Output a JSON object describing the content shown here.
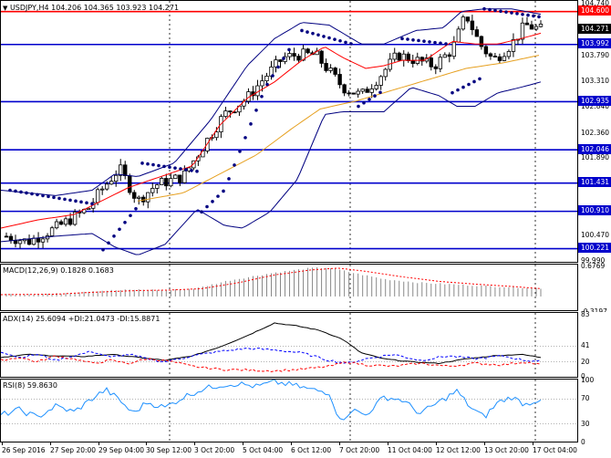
{
  "main": {
    "symbol_label": "USDJPY,H4  104.206 104.365 103.923 104.271",
    "current_price": "104.271",
    "price_ticks": [
      "104.740",
      "104.271",
      "103.790",
      "103.310",
      "102.840",
      "102.360",
      "101.890",
      "101.431",
      "100.910",
      "100.470",
      "99.990"
    ],
    "hlines": [
      {
        "label": "104.600",
        "price": 104.6,
        "color": "#ff0000"
      },
      {
        "label": "103.992",
        "price": 103.992,
        "color": "#0000cc"
      },
      {
        "label": "102.935",
        "price": 102.935,
        "color": "#0000cc"
      },
      {
        "label": "102.046",
        "price": 102.046,
        "color": "#0000cc"
      },
      {
        "label": "101.431",
        "price": 101.431,
        "color": "#0000cc"
      },
      {
        "label": "100.910",
        "price": 100.91,
        "color": "#0000cc"
      },
      {
        "label": "100.221",
        "price": 100.221,
        "color": "#0000cc"
      }
    ]
  },
  "macd": {
    "label": "MACD(12,26,9) 0.1828 0.1683",
    "ticks": [
      "0.6769",
      "0.00",
      "-0.3197"
    ]
  },
  "adx": {
    "label": "ADX(14) 25.6094 +DI:21.0473 -DI:15.8871",
    "ticks": [
      "83",
      "41",
      "20",
      "0"
    ]
  },
  "rsi": {
    "label": "RSI(8) 59.8630",
    "ticks": [
      "100",
      "70",
      "30",
      "0"
    ]
  },
  "xaxis": [
    "26 Sep 2016",
    "27 Sep 20:00",
    "29 Sep 04:00",
    "30 Sep 12:00",
    "3 Oct 20:00",
    "5 Oct 04:00",
    "6 Oct 12:00",
    "7 Oct 20:00",
    "11 Oct 04:00",
    "12 Oct 12:00",
    "13 Oct 20:00",
    "17 Oct 04:00"
  ],
  "colors": {
    "support": "#0000cc",
    "resistance": "#ff0000",
    "bollinger": "#000080",
    "ma_fast": "#ff0000",
    "ma_slow": "#e6a020",
    "sar": "#000080",
    "macd_signal": "#ff0000",
    "di_plus": "#0000ff",
    "rsi": "#1e90ff"
  }
}
